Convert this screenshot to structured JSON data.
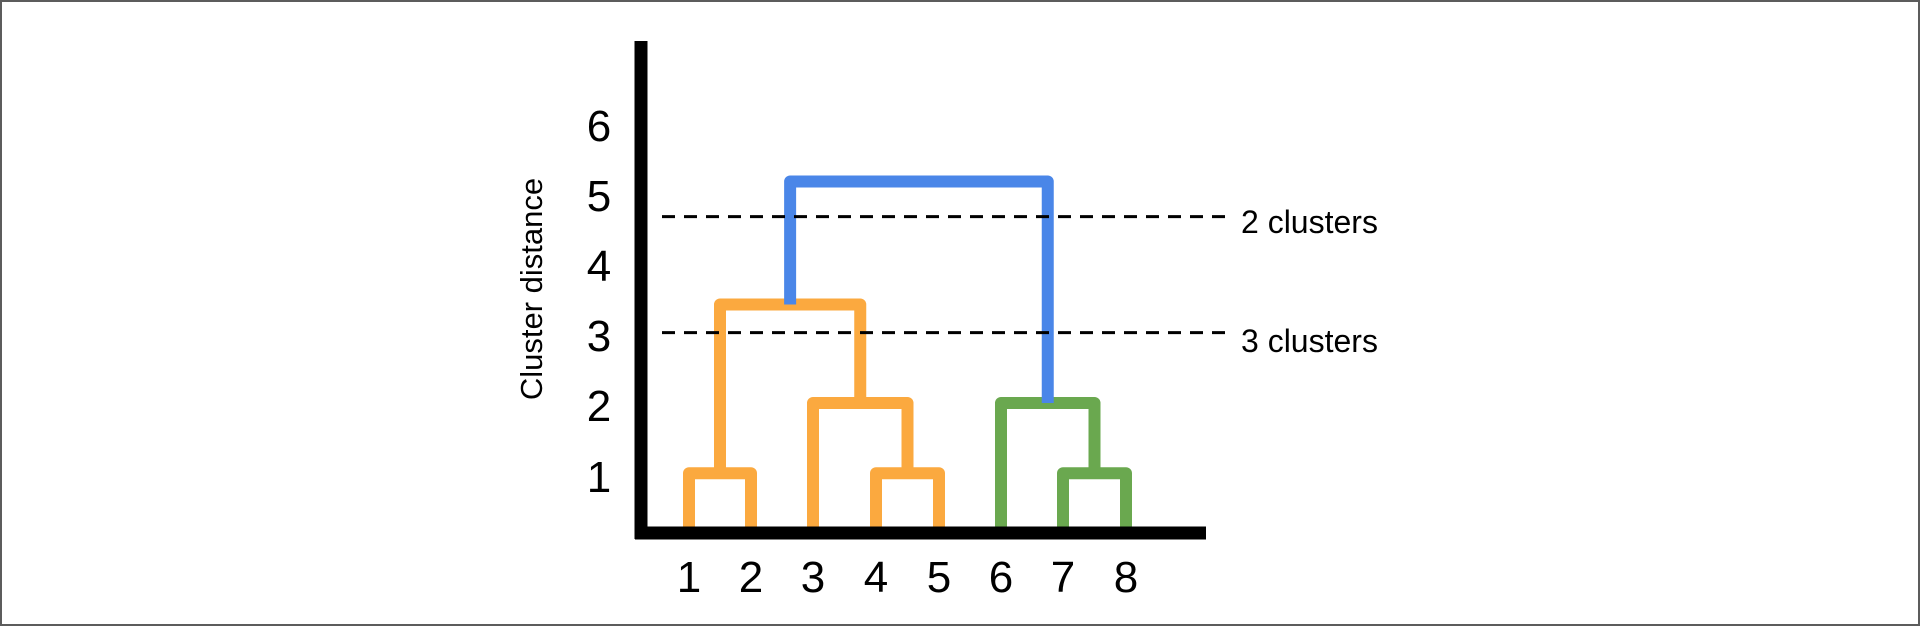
{
  "diagram": {
    "ylabel": "Cluster distance",
    "y_ticks": [
      "1",
      "2",
      "3",
      "4",
      "5",
      "6"
    ],
    "leaves": [
      "1",
      "2",
      "3",
      "4",
      "5",
      "6",
      "7",
      "8"
    ],
    "cut_lines": [
      {
        "label": "2 clusters",
        "distance": 4.5
      },
      {
        "label": "3 clusters",
        "distance": 2.85
      }
    ],
    "colors": {
      "cluster_a": "#fba93f",
      "cluster_b": "#6aa84f",
      "root": "#4a86e8",
      "axis": "#000000"
    },
    "merges": [
      {
        "left": "1",
        "right": "2",
        "distance": 0.85,
        "cluster": "cluster_a"
      },
      {
        "left": "4",
        "right": "5",
        "distance": 0.85,
        "cluster": "cluster_a"
      },
      {
        "left": "7",
        "right": "8",
        "distance": 0.85,
        "cluster": "cluster_b"
      },
      {
        "left": "3",
        "right": "(4,5)",
        "distance": 1.85,
        "cluster": "cluster_a"
      },
      {
        "left": "6",
        "right": "(7,8)",
        "distance": 1.85,
        "cluster": "cluster_b"
      },
      {
        "left": "(1,2)",
        "right": "(3,4,5)",
        "distance": 3.25,
        "cluster": "cluster_a"
      },
      {
        "left": "(1,2,3,4,5)",
        "right": "(6,7,8)",
        "distance": 5.0,
        "cluster": "root"
      }
    ]
  }
}
